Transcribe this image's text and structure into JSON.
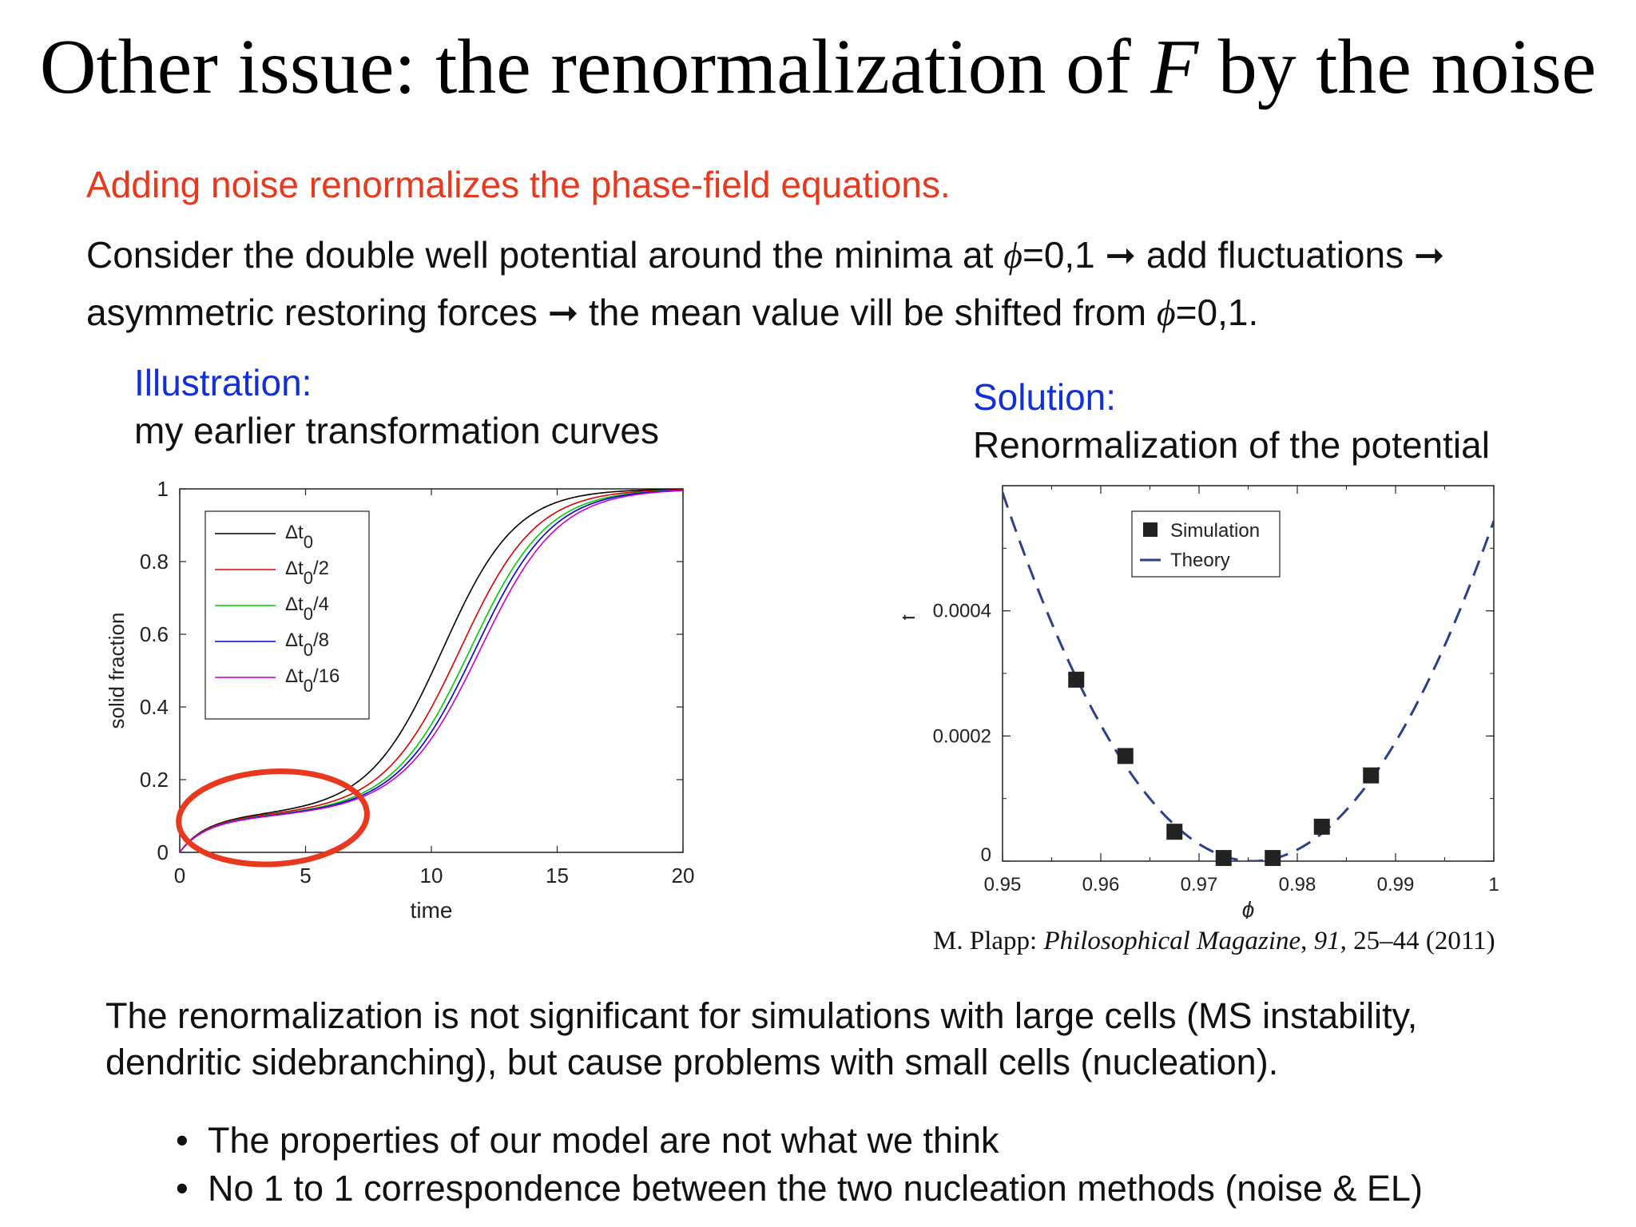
{
  "title": {
    "pre": "Other issue: the renormalization of ",
    "var": "F",
    "post": " by the noise"
  },
  "subtitle": "Adding noise renormalizes the phase-field equations.",
  "intro": {
    "line1_a": "Consider the double well potential around the minima at ",
    "phi": "ϕ",
    "line1_b": "=0,1 ➞ add fluctuations ➞",
    "line2_a": "asymmetric restoring forces ➞ the mean value vill be shifted from ",
    "line2_b": "=0,1."
  },
  "left_panel": {
    "heading": "Illustration:",
    "subheading": "my earlier transformation curves"
  },
  "right_panel": {
    "heading": "Solution:",
    "subheading": "Renormalization of the potential"
  },
  "citation": {
    "author": "M. Plapp: ",
    "journal": "Philosophical Magazine",
    "volume": "91",
    "pages": ", 25–44 (2011)"
  },
  "conclusion": {
    "line1": "The renormalization is not significant for simulations with large cells (MS instability,",
    "line2": "dendritic sidebranching), but cause problems with small cells (nucleation)."
  },
  "bullets": [
    "The properties of our model are not what we think",
    "No 1 to 1 correspondence between the two nucleation methods (noise & EL)"
  ],
  "bullet_symbol": "•",
  "chart_data": [
    {
      "type": "line",
      "xlabel": "time",
      "ylabel": "solid fraction",
      "xlim": [
        0,
        20
      ],
      "ylim": [
        0,
        1
      ],
      "x_ticks": [
        "0",
        "5",
        "10",
        "15",
        "20"
      ],
      "y_ticks": [
        "0",
        "0.2",
        "0.4",
        "0.6",
        "0.8",
        "1"
      ],
      "legend": "top-left",
      "annotation": "red ellipse highlighting early-time region (time 0–7.5, solid fraction 0–0.2)",
      "series": [
        {
          "name": "Δt",
          "sub": "0",
          "suffix": "",
          "color": "#000000",
          "midpoint": 10.5,
          "width": 1.45,
          "early": 0.09
        },
        {
          "name": "Δt",
          "sub": "0",
          "suffix": "/2",
          "color": "#e00000",
          "midpoint": 11.2,
          "width": 1.5,
          "early": 0.088
        },
        {
          "name": "Δt",
          "sub": "0",
          "suffix": "/4",
          "color": "#00cc00",
          "midpoint": 11.6,
          "width": 1.52,
          "early": 0.086
        },
        {
          "name": "Δt",
          "sub": "0",
          "suffix": "/8",
          "color": "#0000dd",
          "midpoint": 11.8,
          "width": 1.53,
          "early": 0.085
        },
        {
          "name": "Δt",
          "sub": "0",
          "suffix": "/16",
          "color": "#cc00cc",
          "midpoint": 12.0,
          "width": 1.55,
          "early": 0.084
        }
      ]
    },
    {
      "type": "scatter",
      "xlabel": "ϕ",
      "ylabel": "f",
      "xlim": [
        0.95,
        1.0
      ],
      "ylim": [
        0,
        0.0006
      ],
      "x_ticks": [
        "0.95",
        "0.96",
        "0.97",
        "0.98",
        "0.99",
        "1"
      ],
      "y_ticks": [
        "0",
        "0.0002",
        "0.0004"
      ],
      "legend": "top-right",
      "series": [
        {
          "name": "Simulation",
          "marker": "square",
          "color": "#222222",
          "x": [
            0.9575,
            0.9625,
            0.9675,
            0.9725,
            0.9775,
            0.9825,
            0.9875
          ],
          "y": [
            0.00029,
            0.000168,
            4.7e-05,
            5e-06,
            5e-06,
            5.5e-05,
            0.000137
          ]
        },
        {
          "name": "Theory",
          "style": "dashed",
          "color": "#2b3f8c",
          "model": "parabola",
          "vertex_x": 0.9755,
          "vertex_y": 0.0,
          "coefficient": 0.906
        }
      ]
    }
  ]
}
